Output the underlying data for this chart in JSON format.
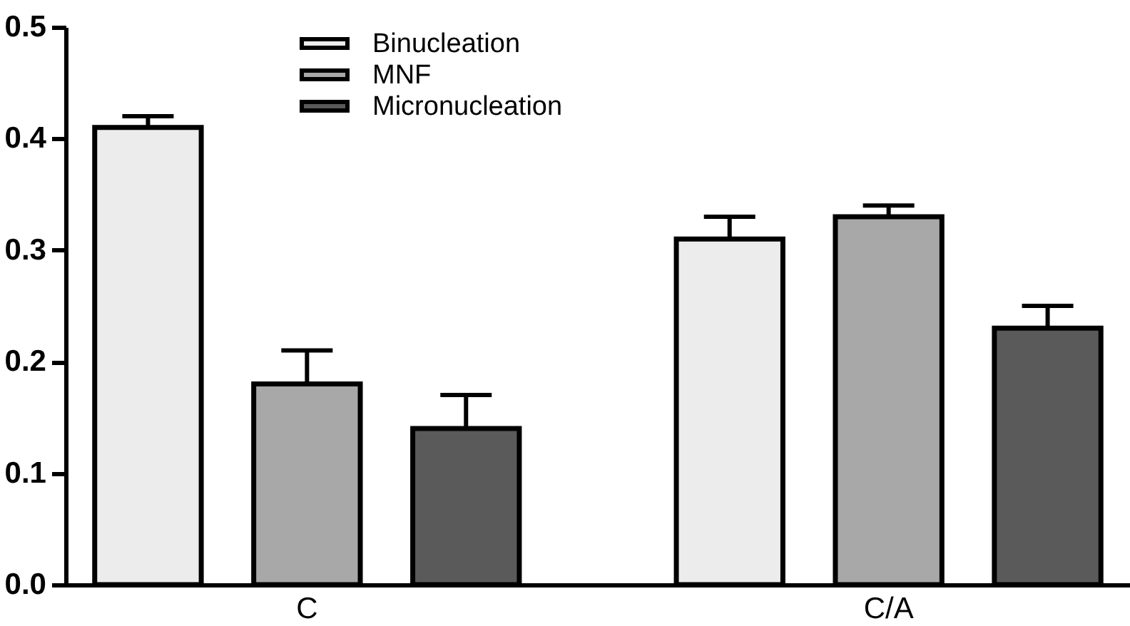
{
  "chart_data": {
    "type": "bar",
    "categories": [
      "C",
      "C/A"
    ],
    "series": [
      {
        "name": "Binucleation",
        "color": "#ececec",
        "values": [
          0.41,
          0.31
        ],
        "errors": [
          [
            0.41,
            0.42
          ],
          [
            0.31,
            0.33
          ]
        ]
      },
      {
        "name": "MNF",
        "color": "#a8a8a8",
        "values": [
          0.18,
          0.33
        ],
        "errors": [
          [
            0.18,
            0.21
          ],
          [
            0.33,
            0.34
          ]
        ]
      },
      {
        "name": "Micronucleation",
        "color": "#5a5a5a",
        "values": [
          0.14,
          0.23
        ],
        "errors": [
          [
            0.14,
            0.17
          ],
          [
            0.23,
            0.25
          ]
        ]
      }
    ],
    "ylim": [
      0,
      0.5
    ],
    "yticks": [
      {
        "value": 0,
        "label": "0.0"
      },
      0.1,
      0.2,
      0.3,
      0.4,
      0.5
    ],
    "grid": false,
    "legend": "top"
  }
}
